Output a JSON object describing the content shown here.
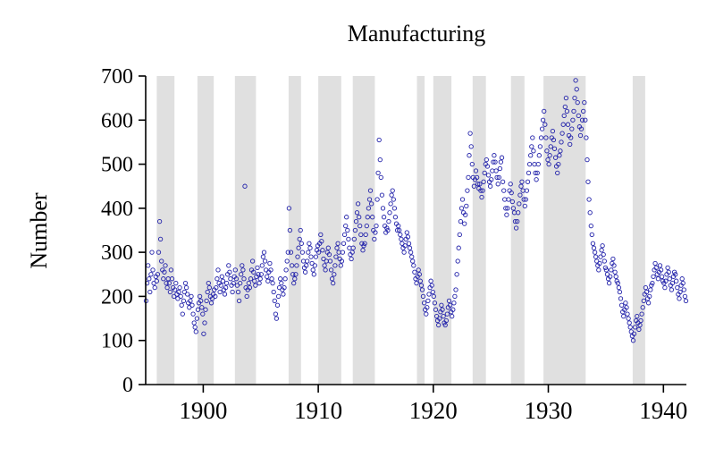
{
  "chart_data": {
    "type": "scatter",
    "title": "Manufacturing",
    "ylabel": "Number",
    "xlabel": "",
    "ylim": [
      0,
      700
    ],
    "xlim": [
      1895,
      1942
    ],
    "y_ticks": [
      0,
      100,
      200,
      300,
      400,
      500,
      600,
      700
    ],
    "x_ticks": [
      1900,
      1910,
      1920,
      1930,
      1940
    ],
    "grid": false,
    "legend": "none",
    "marker": "open-circle",
    "point_color": "#2222aa",
    "band_color": "#e0e0e0",
    "axis_color": "#000000",
    "recession_bands": [
      [
        1895.96,
        1897.5
      ],
      [
        1899.5,
        1900.92
      ],
      [
        1902.75,
        1904.58
      ],
      [
        1907.42,
        1908.5
      ],
      [
        1910.0,
        1912.0
      ],
      [
        1913.0,
        1914.92
      ],
      [
        1918.58,
        1919.25
      ],
      [
        1920.0,
        1921.58
      ],
      [
        1923.42,
        1924.58
      ],
      [
        1926.75,
        1927.92
      ],
      [
        1929.58,
        1933.25
      ],
      [
        1937.33,
        1938.42
      ]
    ],
    "start_year": 1895,
    "frequency": "monthly",
    "monthly_values": [
      [
        190,
        230,
        270,
        240,
        210,
        250,
        300,
        260,
        230,
        220,
        245,
        235
      ],
      [
        250,
        300,
        370,
        330,
        280,
        260,
        240,
        255,
        270,
        230,
        220,
        240
      ],
      [
        230,
        210,
        260,
        240,
        220,
        200,
        215,
        230,
        205,
        195,
        210,
        220
      ],
      [
        200,
        180,
        160,
        190,
        210,
        230,
        220,
        205,
        185,
        175,
        190,
        200
      ],
      [
        180,
        160,
        140,
        130,
        120,
        150,
        170,
        185,
        200,
        190,
        175,
        160
      ],
      [
        115,
        140,
        170,
        190,
        210,
        230,
        220,
        200,
        185,
        195,
        205,
        215
      ],
      [
        200,
        220,
        240,
        260,
        230,
        210,
        225,
        245,
        235,
        215,
        205,
        220
      ],
      [
        230,
        250,
        270,
        255,
        240,
        225,
        210,
        230,
        245,
        260,
        240,
        225
      ],
      [
        210,
        190,
        230,
        250,
        270,
        260,
        240,
        450,
        220,
        200,
        215,
        230
      ],
      [
        220,
        240,
        260,
        280,
        255,
        235,
        225,
        245,
        265,
        250,
        230,
        240
      ],
      [
        250,
        270,
        290,
        300,
        280,
        260,
        245,
        235,
        255,
        275,
        260,
        240
      ],
      [
        230,
        210,
        190,
        160,
        150,
        180,
        200,
        220,
        240,
        230,
        215,
        205
      ],
      [
        220,
        240,
        260,
        280,
        300,
        400,
        350,
        300,
        270,
        250,
        230,
        240
      ],
      [
        250,
        270,
        290,
        310,
        330,
        350,
        320,
        300,
        280,
        265,
        255,
        270
      ],
      [
        280,
        300,
        320,
        310,
        290,
        275,
        260,
        250,
        270,
        290,
        305,
        315
      ],
      [
        300,
        320,
        340,
        325,
        305,
        285,
        270,
        260,
        280,
        300,
        310,
        295
      ],
      [
        280,
        260,
        240,
        230,
        250,
        270,
        290,
        310,
        320,
        300,
        285,
        270
      ],
      [
        280,
        300,
        320,
        340,
        360,
        380,
        350,
        330,
        310,
        295,
        285,
        300
      ],
      [
        310,
        330,
        350,
        370,
        390,
        410,
        380,
        360,
        340,
        320,
        305,
        315
      ],
      [
        320,
        340,
        360,
        380,
        400,
        420,
        440,
        410,
        380,
        350,
        330,
        345
      ],
      [
        360,
        420,
        480,
        555,
        510,
        470,
        430,
        400,
        380,
        360,
        345,
        355
      ],
      [
        350,
        370,
        390,
        410,
        430,
        440,
        420,
        400,
        380,
        365,
        350,
        360
      ],
      [
        350,
        340,
        330,
        320,
        310,
        300,
        315,
        330,
        345,
        335,
        320,
        310
      ],
      [
        300,
        290,
        280,
        270,
        255,
        240,
        230,
        245,
        260,
        250,
        235,
        225
      ],
      [
        215,
        200,
        185,
        170,
        160,
        175,
        190,
        205,
        220,
        235,
        225,
        210
      ],
      [
        200,
        185,
        170,
        155,
        145,
        135,
        150,
        165,
        180,
        170,
        155,
        140
      ],
      [
        135,
        145,
        160,
        175,
        190,
        180,
        165,
        155,
        170,
        185,
        200,
        215
      ],
      [
        250,
        280,
        310,
        340,
        370,
        400,
        420,
        390,
        365,
        385,
        405,
        440
      ],
      [
        470,
        520,
        570,
        540,
        500,
        470,
        450,
        465,
        485,
        470,
        455,
        445
      ],
      [
        455,
        440,
        425,
        440,
        460,
        480,
        500,
        510,
        495,
        475,
        460,
        450
      ],
      [
        465,
        485,
        505,
        520,
        505,
        485,
        470,
        455,
        470,
        490,
        505,
        515
      ],
      [
        460,
        440,
        420,
        400,
        385,
        400,
        420,
        440,
        455,
        435,
        415,
        400
      ],
      [
        390,
        370,
        355,
        370,
        390,
        410,
        430,
        450,
        460,
        440,
        420,
        405
      ],
      [
        420,
        440,
        460,
        480,
        500,
        520,
        540,
        560,
        530,
        500,
        480,
        465
      ],
      [
        480,
        500,
        520,
        540,
        560,
        580,
        600,
        620,
        590,
        560,
        530,
        510
      ],
      [
        500,
        520,
        540,
        560,
        575,
        555,
        535,
        515,
        495,
        480,
        500,
        520
      ],
      [
        530,
        550,
        570,
        590,
        610,
        630,
        650,
        620,
        590,
        565,
        545,
        560
      ],
      [
        580,
        600,
        620,
        650,
        690,
        670,
        640,
        610,
        585,
        565,
        580,
        600
      ],
      [
        620,
        640,
        600,
        560,
        510,
        460,
        420,
        390,
        360,
        340,
        320,
        310
      ],
      [
        300,
        290,
        280,
        270,
        260,
        275,
        290,
        305,
        315,
        295,
        280,
        265
      ],
      [
        260,
        250,
        240,
        230,
        245,
        260,
        275,
        285,
        270,
        255,
        245,
        235
      ],
      [
        230,
        220,
        210,
        195,
        180,
        165,
        155,
        170,
        185,
        175,
        160,
        150
      ],
      [
        140,
        130,
        120,
        110,
        100,
        115,
        130,
        145,
        155,
        140,
        125,
        135
      ],
      [
        145,
        160,
        175,
        190,
        205,
        220,
        210,
        195,
        185,
        200,
        215,
        225
      ],
      [
        230,
        245,
        260,
        275,
        265,
        250,
        240,
        255,
        270,
        260,
        245,
        235
      ],
      [
        230,
        220,
        235,
        250,
        265,
        255,
        240,
        225,
        215,
        230,
        245,
        255
      ],
      [
        250,
        235,
        220,
        205,
        195,
        210,
        225,
        240,
        230,
        215,
        200,
        190
      ]
    ]
  }
}
